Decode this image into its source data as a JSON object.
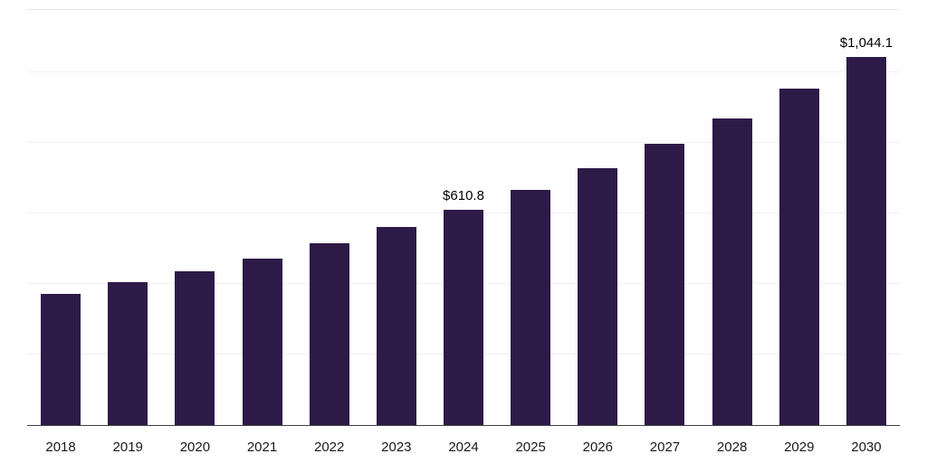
{
  "chart_data": {
    "type": "bar",
    "title": "",
    "xlabel": "",
    "ylabel": "",
    "categories": [
      "2018",
      "2019",
      "2020",
      "2021",
      "2022",
      "2023",
      "2024",
      "2025",
      "2026",
      "2027",
      "2028",
      "2029",
      "2030"
    ],
    "values": [
      373.0,
      405.0,
      437.0,
      473.0,
      516.0,
      561.0,
      610.8,
      668.0,
      729.0,
      798.0,
      870.0,
      954.0,
      1044.1
    ],
    "data_labels": [
      {
        "index": 6,
        "text": "$610.8"
      },
      {
        "index": 12,
        "text": "$1,044.1"
      }
    ],
    "ylim": [
      0,
      1180
    ],
    "grid": "horizontal-faint",
    "grid_step": 200,
    "legend": "none",
    "bar_color": "#2E1A47",
    "axis_line_color": "#3f3f3f",
    "label_color": "#1a1a1a"
  }
}
